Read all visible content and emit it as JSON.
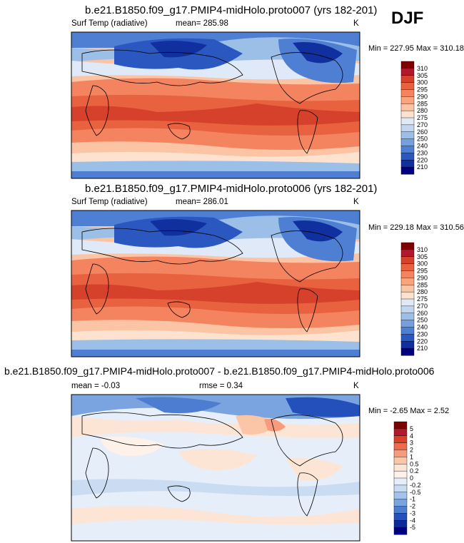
{
  "season": "DJF",
  "panels": [
    {
      "title": "b.e21.B1850.f09_g17.PMIP4-midHolo.proto007 (yrs 182-201)",
      "left_label": "Surf Temp (radiative)",
      "center_label": "mean= 285.98",
      "units": "K",
      "minmax": "Min = 227.95 Max = 310.18",
      "colorbar_type": "abs",
      "colorbar_labels": [
        "310",
        "305",
        "300",
        "295",
        "290",
        "285",
        "280",
        "275",
        "270",
        "260",
        "250",
        "240",
        "230",
        "220",
        "210"
      ]
    },
    {
      "title": "b.e21.B1850.f09_g17.PMIP4-midHolo.proto006 (yrs 182-201)",
      "left_label": "Surf Temp (radiative)",
      "center_label": "mean= 286.01",
      "units": "K",
      "minmax": "Min = 229.18 Max = 310.56",
      "colorbar_type": "abs",
      "colorbar_labels": [
        "310",
        "305",
        "300",
        "295",
        "290",
        "285",
        "280",
        "275",
        "270",
        "260",
        "250",
        "240",
        "230",
        "220",
        "210"
      ]
    },
    {
      "title": "b.e21.B1850.f09_g17.PMIP4-midHolo.proto007 - b.e21.B1850.f09_g17.PMIP4-midHolo.proto006",
      "left_label": "mean =  -0.03",
      "center_label": "rmse =   0.34",
      "units": "K",
      "minmax": "Min =  -2.65 Max =   2.52",
      "colorbar_type": "diff",
      "colorbar_labels": [
        "5",
        "4",
        "3",
        "2",
        "1",
        "0.5",
        "0.2",
        "0",
        "-0.2",
        "-0.5",
        "-1",
        "-2",
        "-3",
        "-4",
        "-5"
      ]
    }
  ],
  "colors": {
    "abs_scale": [
      "#7f0000",
      "#b2182b",
      "#d6412b",
      "#e8623f",
      "#f4845f",
      "#f8a47f",
      "#fbc5a5",
      "#fde2cf",
      "#dfe9f7",
      "#c1d7f0",
      "#9cbfe8",
      "#759fde",
      "#4f7fd2",
      "#2a58c0",
      "#1030a0",
      "#000080"
    ],
    "diff_scale": [
      "#800000",
      "#b2182b",
      "#d6412b",
      "#ee6a4b",
      "#f89b7c",
      "#fbc5a7",
      "#fde5d6",
      "#fdf1ea",
      "#e6eef9",
      "#c9dcf2",
      "#a3c3ea",
      "#7aa4df",
      "#4d7dd0",
      "#2450bb",
      "#0c2a9c",
      "#000080"
    ]
  }
}
